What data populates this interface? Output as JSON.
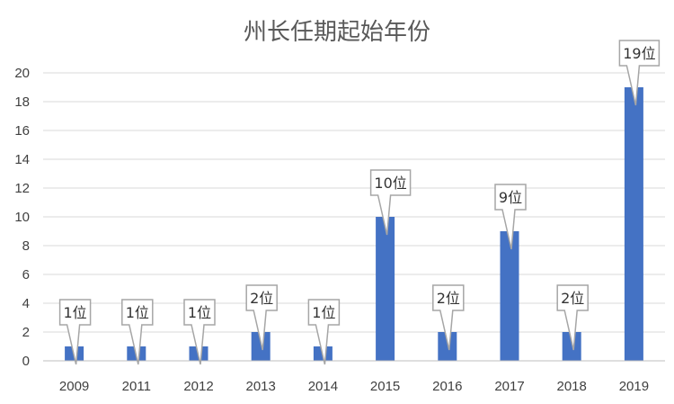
{
  "chart_data": {
    "type": "bar",
    "title": "州长任期起始年份",
    "xlabel": "",
    "ylabel": "",
    "categories": [
      "2009",
      "2011",
      "2012",
      "2013",
      "2014",
      "2015",
      "2016",
      "2017",
      "2018",
      "2019"
    ],
    "values": [
      1,
      1,
      1,
      2,
      1,
      10,
      2,
      9,
      2,
      19
    ],
    "data_labels": [
      "1位",
      "1位",
      "1位",
      "2位",
      "1位",
      "10位",
      "2位",
      "9位",
      "2位",
      "19位"
    ],
    "ylim": [
      0,
      20
    ],
    "yticks": [
      "0",
      "2",
      "4",
      "6",
      "8",
      "10",
      "12",
      "14",
      "16",
      "18",
      "20"
    ],
    "grid": true,
    "legend": "none",
    "colors": {
      "bar": "#4472C4",
      "grid": "#D9D9D9",
      "axis": "#BFBFBF",
      "callout_border": "#A6A6A6"
    }
  }
}
